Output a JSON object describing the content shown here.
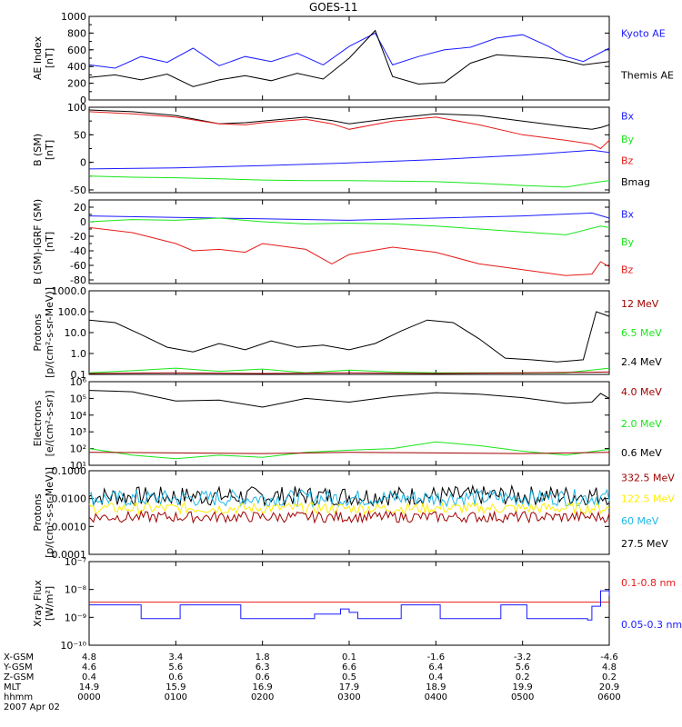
{
  "title": "GOES-11",
  "date_label": "2007 Apr 02",
  "colors": {
    "black": "#000000",
    "blue": "#1a1aff",
    "green": "#19e619",
    "red": "#e61a1a",
    "darkred": "#a00000",
    "yellow": "#ffee00",
    "cyan": "#1fb7e6",
    "axis": "#000000"
  },
  "chart_data": [
    {
      "id": "ae",
      "type": "line",
      "ylabel": [
        "AE Index",
        "[nT]"
      ],
      "ylim": [
        0,
        1000
      ],
      "yticks": [
        {
          "v": 0,
          "l": "0"
        },
        {
          "v": 200,
          "l": "200"
        },
        {
          "v": 400,
          "l": "400"
        },
        {
          "v": 600,
          "l": "600"
        },
        {
          "v": 800,
          "l": "800"
        },
        {
          "v": 1000,
          "l": "1000"
        }
      ],
      "legend": [
        {
          "label": "Kyoto AE",
          "color": "blue",
          "pos": 0.2
        },
        {
          "label": "Themis AE",
          "color": "black",
          "pos": 0.7
        }
      ],
      "series": [
        {
          "name": "Kyoto AE",
          "color": "blue",
          "x": [
            0,
            0.3,
            0.6,
            0.9,
            1.2,
            1.5,
            1.8,
            2.1,
            2.4,
            2.7,
            3.0,
            3.3,
            3.5,
            3.8,
            4.1,
            4.4,
            4.7,
            5.0,
            5.3,
            5.5,
            5.7,
            6.0
          ],
          "y": [
            420,
            380,
            520,
            450,
            620,
            410,
            520,
            460,
            560,
            420,
            640,
            800,
            420,
            520,
            600,
            630,
            740,
            780,
            640,
            520,
            460,
            620
          ]
        },
        {
          "name": "Themis AE",
          "color": "black",
          "x": [
            0,
            0.3,
            0.6,
            0.9,
            1.2,
            1.5,
            1.8,
            2.1,
            2.4,
            2.7,
            3.0,
            3.3,
            3.5,
            3.8,
            4.1,
            4.4,
            4.7,
            5.0,
            5.3,
            5.5,
            5.7,
            6.0
          ],
          "y": [
            270,
            300,
            240,
            310,
            160,
            240,
            290,
            230,
            320,
            250,
            500,
            830,
            280,
            190,
            210,
            440,
            540,
            520,
            500,
            470,
            420,
            460
          ]
        }
      ]
    },
    {
      "id": "bsm",
      "type": "line",
      "ylabel": [
        "B (SM)",
        "[nT]"
      ],
      "ylim": [
        -55,
        100
      ],
      "yticks": [
        {
          "v": -50,
          "l": "-50"
        },
        {
          "v": 0,
          "l": "0"
        },
        {
          "v": 50,
          "l": "50"
        },
        {
          "v": 100,
          "l": "100"
        }
      ],
      "legend": [
        {
          "label": "Bx",
          "color": "blue",
          "pos": 0.1
        },
        {
          "label": "By",
          "color": "green",
          "pos": 0.37
        },
        {
          "label": "Bz",
          "color": "red",
          "pos": 0.62
        },
        {
          "label": "Bmag",
          "color": "black",
          "pos": 0.87
        }
      ],
      "series": [
        {
          "name": "Bmag",
          "color": "black",
          "x": [
            0,
            0.5,
            1.0,
            1.5,
            1.8,
            2.0,
            2.5,
            2.8,
            3.0,
            3.5,
            4.0,
            4.5,
            5.0,
            5.5,
            5.8,
            5.9,
            6.0
          ],
          "y": [
            95,
            92,
            85,
            70,
            72,
            75,
            82,
            76,
            70,
            80,
            88,
            85,
            75,
            65,
            60,
            63,
            68
          ]
        },
        {
          "name": "Bz",
          "color": "red",
          "x": [
            0,
            0.5,
            1.0,
            1.5,
            1.8,
            2.0,
            2.5,
            2.8,
            3.0,
            3.5,
            4.0,
            4.5,
            5.0,
            5.5,
            5.8,
            5.9,
            6.0
          ],
          "y": [
            92,
            88,
            82,
            70,
            68,
            72,
            78,
            70,
            60,
            75,
            82,
            68,
            50,
            40,
            33,
            25,
            40
          ]
        },
        {
          "name": "Bx",
          "color": "blue",
          "x": [
            0,
            1,
            2,
            3,
            4,
            5,
            5.8,
            6.0
          ],
          "y": [
            -12,
            -10,
            -6,
            -1,
            5,
            13,
            22,
            18
          ]
        },
        {
          "name": "By",
          "color": "green",
          "x": [
            0,
            0.5,
            1.0,
            1.5,
            2.0,
            2.5,
            3.0,
            3.5,
            4.0,
            4.5,
            5.0,
            5.5,
            5.9,
            6.0
          ],
          "y": [
            -25,
            -27,
            -28,
            -30,
            -32,
            -33,
            -33,
            -34,
            -35,
            -38,
            -42,
            -45,
            -35,
            -33
          ]
        }
      ]
    },
    {
      "id": "bigrf",
      "type": "line",
      "ylabel": [
        "B (SM)-IGRF (SM)",
        "[nT]"
      ],
      "ylim": [
        -85,
        30
      ],
      "yticks": [
        {
          "v": -80,
          "l": "-80"
        },
        {
          "v": -60,
          "l": "-60"
        },
        {
          "v": -40,
          "l": "-40"
        },
        {
          "v": -20,
          "l": "-20"
        },
        {
          "v": 0,
          "l": "0"
        },
        {
          "v": 20,
          "l": "20"
        }
      ],
      "legend": [
        {
          "label": "Bx",
          "color": "blue",
          "pos": 0.17
        },
        {
          "label": "By",
          "color": "green",
          "pos": 0.5
        },
        {
          "label": "Bz",
          "color": "red",
          "pos": 0.83
        }
      ],
      "series": [
        {
          "name": "Bx",
          "color": "blue",
          "x": [
            0,
            1,
            2,
            3,
            4,
            5,
            5.8,
            6.0
          ],
          "y": [
            8,
            6,
            4,
            2,
            5,
            8,
            12,
            5
          ]
        },
        {
          "name": "By",
          "color": "green",
          "x": [
            0,
            0.5,
            1.0,
            1.5,
            2.0,
            2.5,
            3.0,
            3.5,
            4.0,
            4.5,
            5.0,
            5.5,
            5.9,
            6.0
          ],
          "y": [
            0,
            3,
            2,
            5,
            0,
            -3,
            -2,
            -3,
            -6,
            -10,
            -14,
            -18,
            -6,
            -8
          ]
        },
        {
          "name": "Bz",
          "color": "red",
          "x": [
            0,
            0.5,
            1.0,
            1.2,
            1.5,
            1.8,
            2.0,
            2.5,
            2.8,
            3.0,
            3.5,
            4.0,
            4.5,
            5.0,
            5.5,
            5.8,
            5.9,
            6.0
          ],
          "y": [
            -8,
            -15,
            -30,
            -40,
            -38,
            -42,
            -30,
            -38,
            -58,
            -45,
            -35,
            -42,
            -58,
            -66,
            -74,
            -72,
            -55,
            -62
          ]
        }
      ]
    },
    {
      "id": "protons1",
      "type": "line",
      "log": true,
      "ylabel": [
        "Protons",
        "[p/(cm²-s-sr-MeV)]"
      ],
      "ylim": [
        0.1,
        1000
      ],
      "yticks": [
        {
          "v": 0.1,
          "l": "0.1"
        },
        {
          "v": 1,
          "l": "1.0"
        },
        {
          "v": 10,
          "l": "10.0"
        },
        {
          "v": 100,
          "l": "100.0"
        },
        {
          "v": 1000,
          "l": "1000.0"
        }
      ],
      "legend": [
        {
          "label": "12 MeV",
          "color": "darkred",
          "pos": 0.15
        },
        {
          "label": "6.5 MeV",
          "color": "green",
          "pos": 0.5
        },
        {
          "label": "2.4 MeV",
          "color": "black",
          "pos": 0.85
        }
      ],
      "series": [
        {
          "name": "2.4 MeV",
          "color": "black",
          "x": [
            0,
            0.3,
            0.6,
            0.9,
            1.2,
            1.5,
            1.8,
            2.1,
            2.4,
            2.7,
            3.0,
            3.3,
            3.6,
            3.9,
            4.2,
            4.5,
            4.8,
            5.1,
            5.4,
            5.7,
            5.85,
            6.0
          ],
          "y": [
            40,
            30,
            8,
            2,
            1.2,
            3,
            1.5,
            4,
            2,
            2.5,
            1.5,
            3,
            12,
            40,
            30,
            5,
            0.6,
            0.5,
            0.4,
            0.5,
            100,
            60
          ]
        },
        {
          "name": "6.5 MeV",
          "color": "green",
          "x": [
            0,
            0.5,
            1.0,
            1.5,
            2.0,
            2.5,
            3.0,
            3.5,
            4.0,
            4.5,
            5.0,
            5.5,
            6.0
          ],
          "y": [
            0.12,
            0.15,
            0.2,
            0.14,
            0.18,
            0.12,
            0.16,
            0.13,
            0.12,
            0.12,
            0.12,
            0.12,
            0.2
          ]
        },
        {
          "name": "12 MeV",
          "color": "darkred",
          "x": [
            0,
            1,
            2,
            3,
            4,
            5,
            6
          ],
          "y": [
            0.11,
            0.12,
            0.11,
            0.12,
            0.11,
            0.12,
            0.13
          ]
        }
      ]
    },
    {
      "id": "electrons",
      "type": "line",
      "log": true,
      "ylabel": [
        "Electrons",
        "[e/(cm²-s-sr)]"
      ],
      "ylim": [
        10,
        1000000
      ],
      "yticks": [
        {
          "v": 10,
          "l": "10¹"
        },
        {
          "v": 100,
          "l": "10²"
        },
        {
          "v": 1000,
          "l": "10³"
        },
        {
          "v": 10000,
          "l": "10⁴"
        },
        {
          "v": 100000,
          "l": "10⁵"
        },
        {
          "v": 1000000,
          "l": "10⁶"
        }
      ],
      "legend": [
        {
          "label": "4.0 MeV",
          "color": "darkred",
          "pos": 0.12
        },
        {
          "label": "2.0 MeV",
          "color": "green",
          "pos": 0.5
        },
        {
          "label": "0.6 MeV",
          "color": "black",
          "pos": 0.85
        }
      ],
      "series": [
        {
          "name": "0.6 MeV",
          "color": "black",
          "x": [
            0,
            0.5,
            1.0,
            1.5,
            2.0,
            2.5,
            3.0,
            3.5,
            4.0,
            4.5,
            5.0,
            5.5,
            5.8,
            5.9,
            6.0
          ],
          "y": [
            300000,
            250000,
            70000,
            80000,
            30000,
            100000,
            60000,
            130000,
            220000,
            180000,
            110000,
            50000,
            60000,
            200000,
            100000
          ]
        },
        {
          "name": "2.0 MeV",
          "color": "green",
          "x": [
            0,
            0.5,
            1.0,
            1.5,
            2.0,
            2.5,
            3.0,
            3.5,
            4.0,
            4.5,
            5.0,
            5.5,
            6.0
          ],
          "y": [
            100,
            40,
            25,
            40,
            30,
            60,
            80,
            100,
            250,
            150,
            70,
            40,
            90
          ]
        },
        {
          "name": "4.0 MeV",
          "color": "darkred",
          "x": [
            0,
            1,
            2,
            3,
            4,
            5,
            6
          ],
          "y": [
            60,
            55,
            50,
            60,
            55,
            50,
            60
          ]
        }
      ]
    },
    {
      "id": "protons2",
      "type": "line",
      "log": true,
      "ylabel": [
        "Protons",
        "[p/(cm²-s-sr-MeV)]"
      ],
      "ylim": [
        0.0001,
        0.1
      ],
      "yticks": [
        {
          "v": 0.0001,
          "l": "0.0001"
        },
        {
          "v": 0.001,
          "l": "0.0010"
        },
        {
          "v": 0.01,
          "l": "0.0100"
        },
        {
          "v": 0.1,
          "l": "0.1000"
        }
      ],
      "legend": [
        {
          "label": "332.5 MeV",
          "color": "darkred",
          "pos": 0.08
        },
        {
          "label": "122.5 MeV",
          "color": "yellow",
          "pos": 0.33
        },
        {
          "label": "60 MeV",
          "color": "cyan",
          "pos": 0.6
        },
        {
          "label": "27.5 MeV",
          "color": "black",
          "pos": 0.87
        }
      ],
      "series": [
        {
          "name": "27.5 MeV",
          "color": "black",
          "noise": 0.35,
          "x": [
            0,
            6
          ],
          "y": [
            0.012,
            0.013
          ]
        },
        {
          "name": "60 MeV",
          "color": "cyan",
          "noise": 0.3,
          "x": [
            0,
            6
          ],
          "y": [
            0.01,
            0.011
          ]
        },
        {
          "name": "122.5 MeV",
          "color": "yellow",
          "noise": 0.2,
          "x": [
            0,
            6
          ],
          "y": [
            0.0045,
            0.0045
          ]
        },
        {
          "name": "332.5 MeV",
          "color": "darkred",
          "noise": 0.2,
          "x": [
            0,
            6
          ],
          "y": [
            0.0022,
            0.0022
          ]
        }
      ]
    },
    {
      "id": "xray",
      "type": "line",
      "log": true,
      "ylabel": [
        "Xray Flux",
        "[W/m²]"
      ],
      "ylim": [
        1e-10,
        1e-07
      ],
      "yticks": [
        {
          "v": 1e-10,
          "l": "10⁻¹⁰"
        },
        {
          "v": 1e-09,
          "l": "10⁻⁹"
        },
        {
          "v": 1e-08,
          "l": "10⁻⁸"
        },
        {
          "v": 1e-07,
          "l": "10⁻⁷"
        }
      ],
      "legend": [
        {
          "label": "0.1-0.8 nm",
          "color": "red",
          "pos": 0.25
        },
        {
          "label": "0.05-0.3 nm",
          "color": "blue",
          "pos": 0.75
        }
      ],
      "series": [
        {
          "name": "0.1-0.8 nm",
          "color": "red",
          "x": [
            0,
            6
          ],
          "y": [
            3.5e-09,
            3.5e-09
          ]
        },
        {
          "name": "0.05-0.3 nm",
          "color": "blue",
          "step": true,
          "x": [
            0,
            0.55,
            0.6,
            1.0,
            1.05,
            1.7,
            1.75,
            2.5,
            2.6,
            2.9,
            3.0,
            3.1,
            3.5,
            3.6,
            4.0,
            4.05,
            4.7,
            4.75,
            5.0,
            5.05,
            5.7,
            5.75,
            5.8,
            5.9,
            6.0
          ],
          "y": [
            2.8e-09,
            2.8e-09,
            9e-10,
            9e-10,
            2.8e-09,
            2.8e-09,
            9e-10,
            9e-10,
            1.3e-09,
            2e-09,
            1.5e-09,
            9e-10,
            9e-10,
            2.8e-09,
            2.8e-09,
            9e-10,
            9e-10,
            2.8e-09,
            2.8e-09,
            9e-10,
            9e-10,
            8e-10,
            2.5e-09,
            9e-09,
            6e-09
          ]
        }
      ]
    }
  ],
  "xaxis": {
    "range": [
      0,
      6
    ],
    "rows": [
      {
        "label": "X-GSM",
        "values": [
          "4.8",
          "3.4",
          "1.8",
          "0.1",
          "-1.6",
          "-3.2",
          "-4.6"
        ]
      },
      {
        "label": "Y-GSM",
        "values": [
          "4.6",
          "5.6",
          "6.3",
          "6.6",
          "6.4",
          "5.6",
          "4.8"
        ]
      },
      {
        "label": "Z-GSM",
        "values": [
          "0.4",
          "0.6",
          "0.6",
          "0.5",
          "0.4",
          "0.2",
          "0.2"
        ]
      },
      {
        "label": "MLT",
        "values": [
          "14.9",
          "15.9",
          "16.9",
          "17.9",
          "18.9",
          "19.9",
          "20.9"
        ]
      },
      {
        "label": "hhmm",
        "values": [
          "0000",
          "0100",
          "0200",
          "0300",
          "0400",
          "0500",
          "0600"
        ]
      }
    ]
  }
}
